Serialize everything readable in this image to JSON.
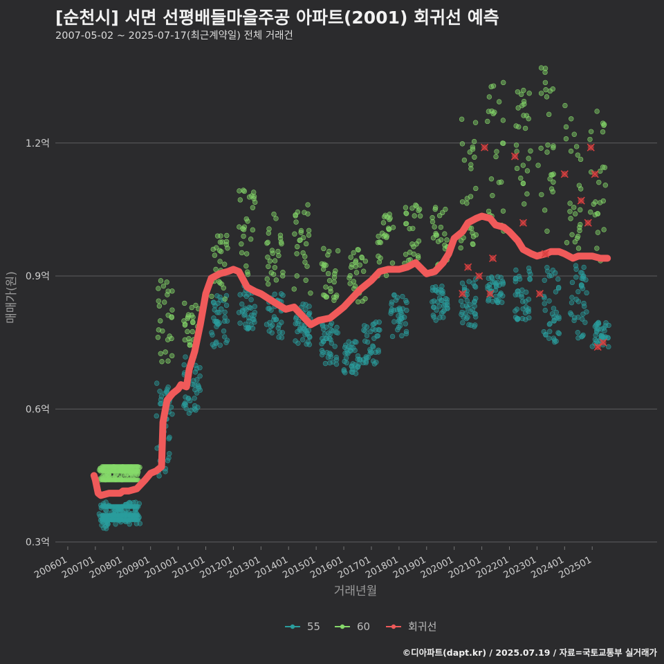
{
  "title": "[순천시] 서면 선평배들마을주공 아파트(2001) 회귀선 예측",
  "subtitle": "2007-05-02 ~ 2025-07-17(최근계약일) 전체 거래건",
  "footer": "©디아파트(dapt.kr) / 2025.07.19 / 자료=국토교통부 실거래가",
  "chart_data": {
    "type": "scatter",
    "title": "[순천시] 서면 선평배들마을주공 아파트(2001) 회귀선 예측",
    "subtitle": "2007-05-02 ~ 2025-07-17(최근계약일) 전체 거래건",
    "xlabel": "거래년월",
    "ylabel": "매매가(원)",
    "x_ticks": [
      "200601",
      "200701",
      "200801",
      "200901",
      "201001",
      "201101",
      "201201",
      "201301",
      "201401",
      "201501",
      "201601",
      "201701",
      "201801",
      "201901",
      "202001",
      "202101",
      "202201",
      "202301",
      "202401",
      "202501"
    ],
    "y_ticks": [
      {
        "value": 0.3,
        "label": "0.3억"
      },
      {
        "value": 0.6,
        "label": "0.6억"
      },
      {
        "value": 0.9,
        "label": "0.9억"
      },
      {
        "value": 1.2,
        "label": "1.2억"
      }
    ],
    "xlim": [
      2005.55,
      2027.35
    ],
    "ylim": [
      0.29,
      1.39
    ],
    "grid": "horizontal",
    "legend_position": "bottom",
    "colors": {
      "55": "#2a9d9d",
      "60": "#86d96a",
      "회귀선": "#f05a5a"
    },
    "series": [
      {
        "name": "55",
        "type": "scatter",
        "points_summary": [
          {
            "x": 2007.33,
            "y_range": [
              0.33,
              0.39
            ]
          },
          {
            "x": 2007.83,
            "y_range": [
              0.34,
              0.38
            ]
          },
          {
            "x": 2008.33,
            "y_range": [
              0.34,
              0.39
            ]
          },
          {
            "x": 2009.5,
            "y_range": [
              0.44,
              0.66
            ]
          },
          {
            "x": 2010.5,
            "y_range": [
              0.59,
              0.72
            ]
          },
          {
            "x": 2011.5,
            "y_range": [
              0.74,
              0.86
            ]
          },
          {
            "x": 2012.5,
            "y_range": [
              0.78,
              0.88
            ]
          },
          {
            "x": 2013.5,
            "y_range": [
              0.76,
              0.86
            ]
          },
          {
            "x": 2014.5,
            "y_range": [
              0.74,
              0.84
            ]
          },
          {
            "x": 2015.5,
            "y_range": [
              0.7,
              0.8
            ]
          },
          {
            "x": 2016.3,
            "y_range": [
              0.68,
              0.76
            ]
          },
          {
            "x": 2017.0,
            "y_range": [
              0.7,
              0.8
            ]
          },
          {
            "x": 2018.0,
            "y_range": [
              0.76,
              0.86
            ]
          },
          {
            "x": 2019.5,
            "y_range": [
              0.8,
              0.88
            ]
          },
          {
            "x": 2020.5,
            "y_range": [
              0.78,
              0.9
            ]
          },
          {
            "x": 2021.5,
            "y_range": [
              0.84,
              0.9
            ]
          },
          {
            "x": 2022.5,
            "y_range": [
              0.8,
              0.92
            ]
          },
          {
            "x": 2023.5,
            "y_range": [
              0.74,
              0.92
            ]
          },
          {
            "x": 2024.5,
            "y_range": [
              0.76,
              0.94
            ]
          },
          {
            "x": 2025.3,
            "y_range": [
              0.74,
              0.8
            ]
          }
        ]
      },
      {
        "name": "60",
        "type": "scatter",
        "points_summary": [
          {
            "x": 2007.33,
            "y_range": [
              0.44,
              0.47
            ]
          },
          {
            "x": 2007.83,
            "y_range": [
              0.44,
              0.47
            ]
          },
          {
            "x": 2008.33,
            "y_range": [
              0.45,
              0.47
            ]
          },
          {
            "x": 2009.5,
            "y_range": [
              0.7,
              0.9
            ]
          },
          {
            "x": 2010.5,
            "y_range": [
              0.74,
              0.84
            ]
          },
          {
            "x": 2011.5,
            "y_range": [
              0.84,
              1.0
            ]
          },
          {
            "x": 2012.5,
            "y_range": [
              0.9,
              1.12
            ]
          },
          {
            "x": 2013.5,
            "y_range": [
              0.86,
              1.04
            ]
          },
          {
            "x": 2014.5,
            "y_range": [
              0.84,
              1.07
            ]
          },
          {
            "x": 2015.5,
            "y_range": [
              0.84,
              0.98
            ]
          },
          {
            "x": 2016.5,
            "y_range": [
              0.84,
              0.96
            ]
          },
          {
            "x": 2017.5,
            "y_range": [
              0.9,
              1.04
            ]
          },
          {
            "x": 2018.5,
            "y_range": [
              0.92,
              1.06
            ]
          },
          {
            "x": 2019.5,
            "y_range": [
              0.92,
              1.06
            ]
          },
          {
            "x": 2020.5,
            "y_range": [
              0.96,
              1.26
            ]
          },
          {
            "x": 2021.5,
            "y_range": [
              1.0,
              1.34
            ]
          },
          {
            "x": 2022.5,
            "y_range": [
              1.04,
              1.32
            ]
          },
          {
            "x": 2023.3,
            "y_range": [
              1.0,
              1.38
            ]
          },
          {
            "x": 2024.3,
            "y_range": [
              0.94,
              1.34
            ]
          },
          {
            "x": 2025.2,
            "y_range": [
              0.9,
              1.28
            ]
          }
        ]
      },
      {
        "name": "회귀선",
        "type": "line",
        "x": [
          2006.95,
          2007.0,
          2007.1,
          2007.2,
          2007.5,
          2007.9,
          2008.0,
          2008.2,
          2008.5,
          2008.8,
          2009.0,
          2009.2,
          2009.4,
          2009.45,
          2009.6,
          2009.8,
          2010.0,
          2010.1,
          2010.3,
          2010.4,
          2010.6,
          2010.8,
          2011.0,
          2011.2,
          2011.5,
          2011.8,
          2012.0,
          2012.2,
          2012.5,
          2012.8,
          2013.0,
          2013.5,
          2013.9,
          2014.2,
          2014.5,
          2014.8,
          2015.1,
          2015.5,
          2015.8,
          2016.0,
          2016.3,
          2016.6,
          2017.0,
          2017.3,
          2017.6,
          2018.0,
          2018.3,
          2018.6,
          2019.0,
          2019.3,
          2019.6,
          2019.8,
          2020.0,
          2020.3,
          2020.5,
          2020.8,
          2021.0,
          2021.3,
          2021.5,
          2021.8,
          2022.0,
          2022.3,
          2022.5,
          2022.8,
          2023.0,
          2023.3,
          2023.5,
          2023.8,
          2024.0,
          2024.3,
          2024.5,
          2024.8,
          2025.0,
          2025.3,
          2025.55
        ],
        "y": [
          0.45,
          0.44,
          0.41,
          0.405,
          0.41,
          0.41,
          0.415,
          0.415,
          0.42,
          0.44,
          0.455,
          0.46,
          0.47,
          0.57,
          0.62,
          0.635,
          0.645,
          0.655,
          0.65,
          0.69,
          0.73,
          0.79,
          0.86,
          0.895,
          0.905,
          0.91,
          0.915,
          0.91,
          0.875,
          0.865,
          0.86,
          0.84,
          0.825,
          0.83,
          0.81,
          0.79,
          0.8,
          0.805,
          0.82,
          0.83,
          0.85,
          0.87,
          0.89,
          0.91,
          0.915,
          0.915,
          0.92,
          0.93,
          0.905,
          0.91,
          0.93,
          0.95,
          0.985,
          1.0,
          1.02,
          1.03,
          1.035,
          1.03,
          1.015,
          1.01,
          1.0,
          0.98,
          0.96,
          0.95,
          0.945,
          0.95,
          0.955,
          0.955,
          0.95,
          0.94,
          0.945,
          0.945,
          0.945,
          0.94,
          0.94
        ]
      }
    ],
    "highlighted_recent": [
      {
        "x": 2020.5,
        "y": 0.92
      },
      {
        "x": 2020.9,
        "y": 0.9
      },
      {
        "x": 2021.1,
        "y": 1.19
      },
      {
        "x": 2021.3,
        "y": 0.86
      },
      {
        "x": 2021.4,
        "y": 0.94
      },
      {
        "x": 2022.2,
        "y": 1.17
      },
      {
        "x": 2022.5,
        "y": 1.02
      },
      {
        "x": 2023.1,
        "y": 0.86
      },
      {
        "x": 2023.3,
        "y": 0.95
      },
      {
        "x": 2024.0,
        "y": 1.13
      },
      {
        "x": 2024.6,
        "y": 1.07
      },
      {
        "x": 2024.85,
        "y": 1.02
      },
      {
        "x": 2024.95,
        "y": 1.19
      },
      {
        "x": 2025.1,
        "y": 1.13
      },
      {
        "x": 2025.2,
        "y": 0.74
      },
      {
        "x": 2025.4,
        "y": 0.75
      },
      {
        "x": 2020.3,
        "y": 0.86
      }
    ]
  },
  "legend": [
    {
      "label": "55",
      "color": "#2a9d9d"
    },
    {
      "label": "60",
      "color": "#86d96a"
    },
    {
      "label": "회귀선",
      "color": "#f05a5a"
    }
  ]
}
